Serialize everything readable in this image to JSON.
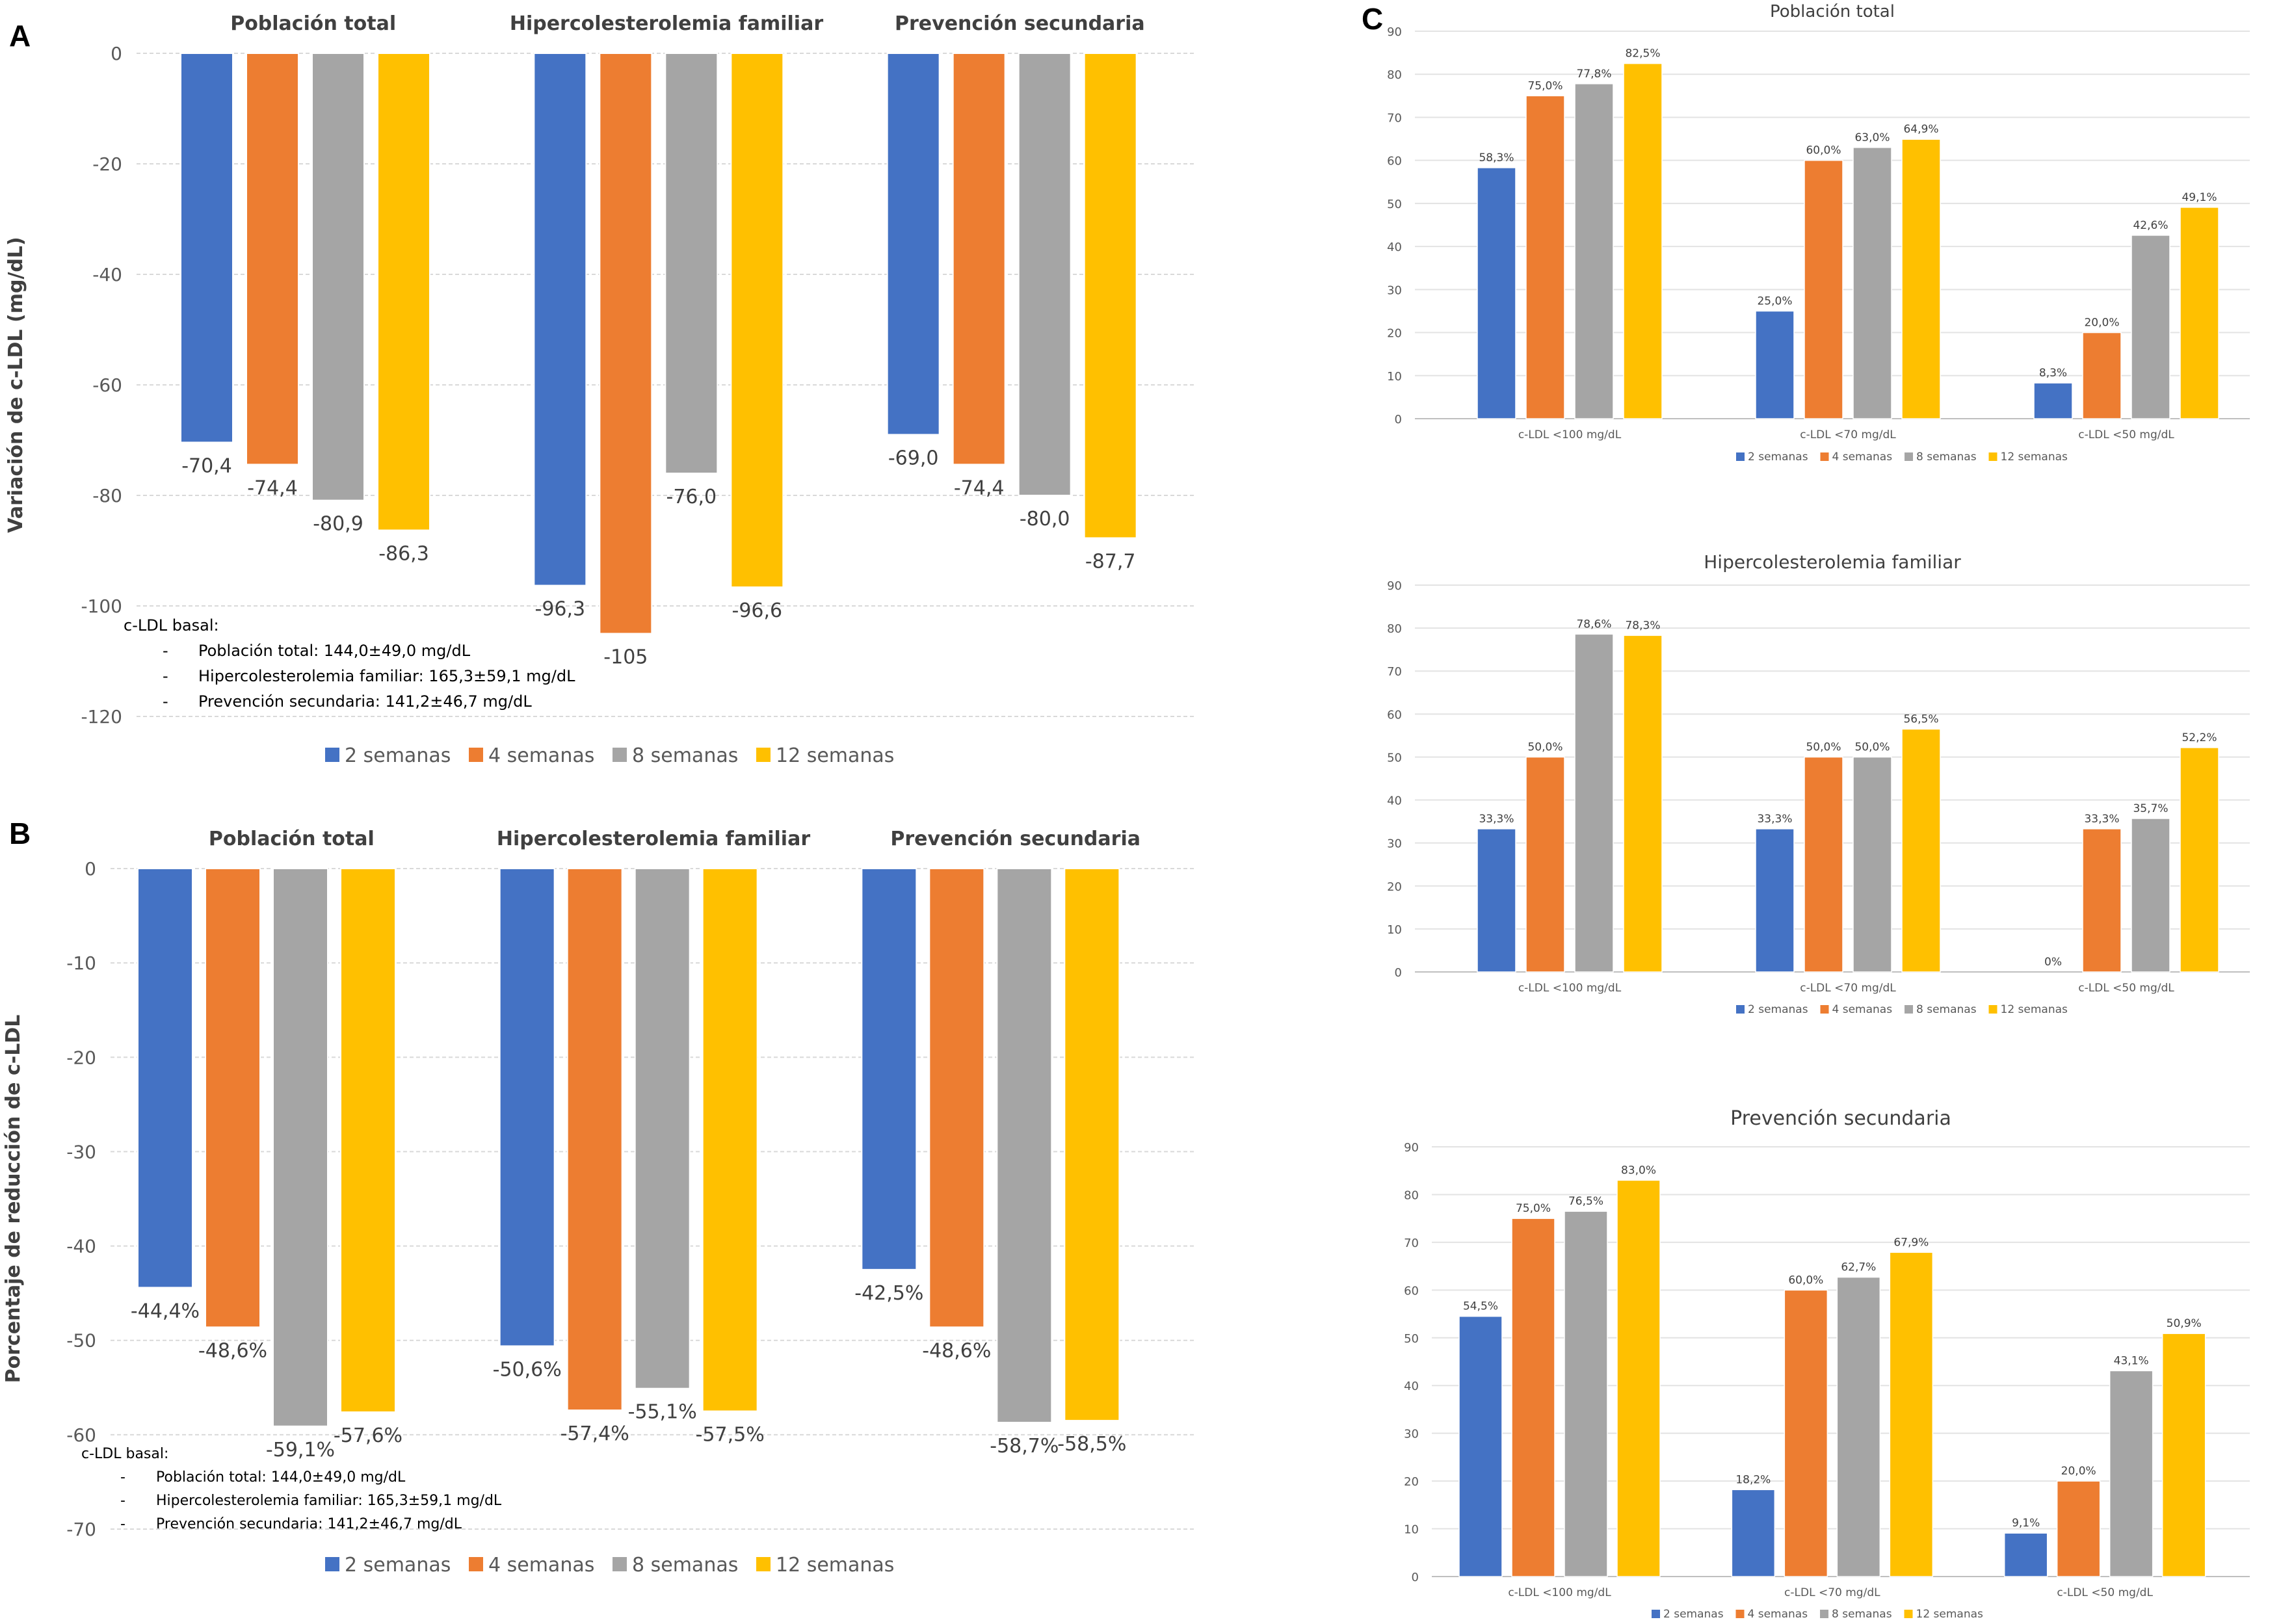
{
  "panels": {
    "a": "A",
    "b": "B",
    "c": "C"
  },
  "series_names": [
    "2 semanas",
    "4 semanas",
    "8 semanas",
    "12 semanas"
  ],
  "colors": [
    "#4472C4",
    "#ED7D31",
    "#A5A5A5",
    "#FFC000"
  ],
  "chart_data": [
    {
      "id": "A",
      "type": "bar",
      "group_titles": [
        "Población total",
        "Hipercolesterolemia familiar",
        "Prevención secundaria"
      ],
      "ylabel": "Variación de c-LDL (mg/dL)",
      "ylim": [
        -120,
        0
      ],
      "yticks": [
        0,
        -20,
        -40,
        -60,
        -80,
        -100,
        -120
      ],
      "series": [
        {
          "name": "2 semanas",
          "values": [
            -70.4,
            -96.3,
            -69.0
          ],
          "labels": [
            "-70,4",
            "-96,3",
            "-69,0"
          ]
        },
        {
          "name": "4 semanas",
          "values": [
            -74.4,
            -105,
            -74.4
          ],
          "labels": [
            "-74,4",
            "-105",
            "-74,4"
          ]
        },
        {
          "name": "8 semanas",
          "values": [
            -80.9,
            -76.0,
            -80.0
          ],
          "labels": [
            "-80,9",
            "-76,0",
            "-80,0"
          ]
        },
        {
          "name": "12 semanas",
          "values": [
            -86.3,
            -96.6,
            -87.7
          ],
          "labels": [
            "-86,3",
            "-96,6",
            "-87,7"
          ]
        }
      ],
      "note": {
        "heading": "c-LDL basal:",
        "lines": [
          "Población total: 144,0±49,0 mg/dL",
          "Hipercolesterolemia familiar: 165,3±59,1 mg/dL",
          "Prevención secundaria: 141,2±46,7 mg/dL"
        ]
      },
      "legend": "bottom",
      "grid": true
    },
    {
      "id": "B",
      "type": "bar",
      "group_titles": [
        "Población total",
        "Hipercolesterolemia familiar",
        "Prevención secundaria"
      ],
      "ylabel": "Porcentaje de reducción de c-LDL",
      "ylim": [
        -70,
        0
      ],
      "yticks": [
        0,
        -10,
        -20,
        -30,
        -40,
        -50,
        -60,
        -70
      ],
      "series": [
        {
          "name": "2 semanas",
          "values": [
            -44.4,
            -50.6,
            -42.5
          ],
          "labels": [
            "-44,4%",
            "-50,6%",
            "-42,5%"
          ]
        },
        {
          "name": "4 semanas",
          "values": [
            -48.6,
            -57.4,
            -48.6
          ],
          "labels": [
            "-48,6%",
            "-57,4%",
            "-48,6%"
          ]
        },
        {
          "name": "8 semanas",
          "values": [
            -59.1,
            -55.1,
            -58.7
          ],
          "labels": [
            "-59,1%",
            "-55,1%",
            "-58,7%"
          ]
        },
        {
          "name": "12 semanas",
          "values": [
            -57.6,
            -57.5,
            -58.5
          ],
          "labels": [
            "-57,6%",
            "-57,5%",
            "-58,5%"
          ]
        }
      ],
      "note": {
        "heading": "c-LDL basal:",
        "lines": [
          "Población total: 144,0±49,0 mg/dL",
          "Hipercolesterolemia familiar: 165,3±59,1 mg/dL",
          "Prevención secundaria: 141,2±46,7 mg/dL"
        ]
      },
      "legend": "bottom",
      "grid": true
    },
    {
      "id": "C1",
      "type": "bar",
      "title": "Población total",
      "categories": [
        "c-LDL <100 mg/dL",
        "c-LDL <70 mg/dL",
        "c-LDL <50 mg/dL"
      ],
      "ylim": [
        0,
        90
      ],
      "yticks": [
        0,
        10,
        20,
        30,
        40,
        50,
        60,
        70,
        80,
        90
      ],
      "series": [
        {
          "name": "2 semanas",
          "values": [
            58.3,
            25.0,
            8.3
          ],
          "labels": [
            "58,3%",
            "25,0%",
            "8,3%"
          ]
        },
        {
          "name": "4 semanas",
          "values": [
            75.0,
            60.0,
            20.0
          ],
          "labels": [
            "75,0%",
            "60,0%",
            "20,0%"
          ]
        },
        {
          "name": "8 semanas",
          "values": [
            77.8,
            63.0,
            42.6
          ],
          "labels": [
            "77,8%",
            "63,0%",
            "42,6%"
          ]
        },
        {
          "name": "12 semanas",
          "values": [
            82.5,
            64.9,
            49.1
          ],
          "labels": [
            "82,5%",
            "64,9%",
            "49,1%"
          ]
        }
      ],
      "legend": "bottom",
      "grid": true
    },
    {
      "id": "C2",
      "type": "bar",
      "title": "Hipercolesterolemia familiar",
      "categories": [
        "c-LDL <100 mg/dL",
        "c-LDL <70 mg/dL",
        "c-LDL <50 mg/dL"
      ],
      "ylim": [
        0,
        90
      ],
      "yticks": [
        0,
        10,
        20,
        30,
        40,
        50,
        60,
        70,
        80,
        90
      ],
      "series": [
        {
          "name": "2 semanas",
          "values": [
            33.3,
            33.3,
            0
          ],
          "labels": [
            "33,3%",
            "33,3%",
            "0%"
          ]
        },
        {
          "name": "4 semanas",
          "values": [
            50.0,
            50.0,
            33.3
          ],
          "labels": [
            "50,0%",
            "50,0%",
            "33,3%"
          ]
        },
        {
          "name": "8 semanas",
          "values": [
            78.6,
            50.0,
            35.7
          ],
          "labels": [
            "78,6%",
            "50,0%",
            "35,7%"
          ]
        },
        {
          "name": "12 semanas",
          "values": [
            78.3,
            56.5,
            52.2
          ],
          "labels": [
            "78,3%",
            "56,5%",
            "52,2%"
          ]
        }
      ],
      "legend": "bottom",
      "grid": true
    },
    {
      "id": "C3",
      "type": "bar",
      "title": "Prevención secundaria",
      "categories": [
        "c-LDL <100 mg/dL",
        "c-LDL <70 mg/dL",
        "c-LDL <50 mg/dL"
      ],
      "ylim": [
        0,
        90
      ],
      "yticks": [
        0,
        10,
        20,
        30,
        40,
        50,
        60,
        70,
        80,
        90
      ],
      "series": [
        {
          "name": "2 semanas",
          "values": [
            54.5,
            18.2,
            9.1
          ],
          "labels": [
            "54,5%",
            "18,2%",
            "9,1%"
          ]
        },
        {
          "name": "4 semanas",
          "values": [
            75.0,
            60.0,
            20.0
          ],
          "labels": [
            "75,0%",
            "60,0%",
            "20,0%"
          ]
        },
        {
          "name": "8 semanas",
          "values": [
            76.5,
            62.7,
            43.1
          ],
          "labels": [
            "76,5%",
            "62,7%",
            "43,1%"
          ]
        },
        {
          "name": "12 semanas",
          "values": [
            83.0,
            67.9,
            50.9
          ],
          "labels": [
            "83,0%",
            "67,9%",
            "50,9%"
          ]
        }
      ],
      "legend": "bottom",
      "grid": true
    }
  ]
}
